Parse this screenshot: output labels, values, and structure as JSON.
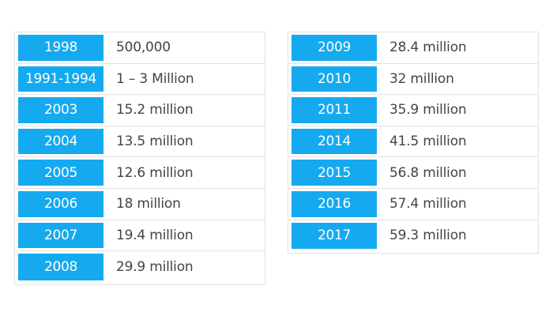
{
  "left_table": {
    "rows": [
      {
        "year": "1998",
        "value": "500,000"
      },
      {
        "year": "1991-1994",
        "value": "1 – 3 Million"
      },
      {
        "year": "2003",
        "value": "15.2 million"
      },
      {
        "year": "2004",
        "value": "13.5 million"
      },
      {
        "year": "2005",
        "value": "12.6 million"
      },
      {
        "year": "2006",
        "value": "18 million"
      },
      {
        "year": "2007",
        "value": "19.4 million"
      },
      {
        "year": "2008",
        "value": "29.9 million"
      }
    ]
  },
  "right_table": {
    "rows": [
      {
        "year": "2009",
        "value": "28.4 million"
      },
      {
        "year": "2010",
        "value": "32 million"
      },
      {
        "year": "2011",
        "value": "35.9 million"
      },
      {
        "year": "2014",
        "value": "41.5 million"
      },
      {
        "year": "2015",
        "value": "56.8 million"
      },
      {
        "year": "2016",
        "value": "57.4 million"
      },
      {
        "year": "2017",
        "value": "59.3 million"
      }
    ]
  },
  "colors": {
    "year_cell_bg": "#15aaf0",
    "year_text": "#ffffff",
    "value_text": "#444444",
    "border": "#e3e3e3"
  }
}
